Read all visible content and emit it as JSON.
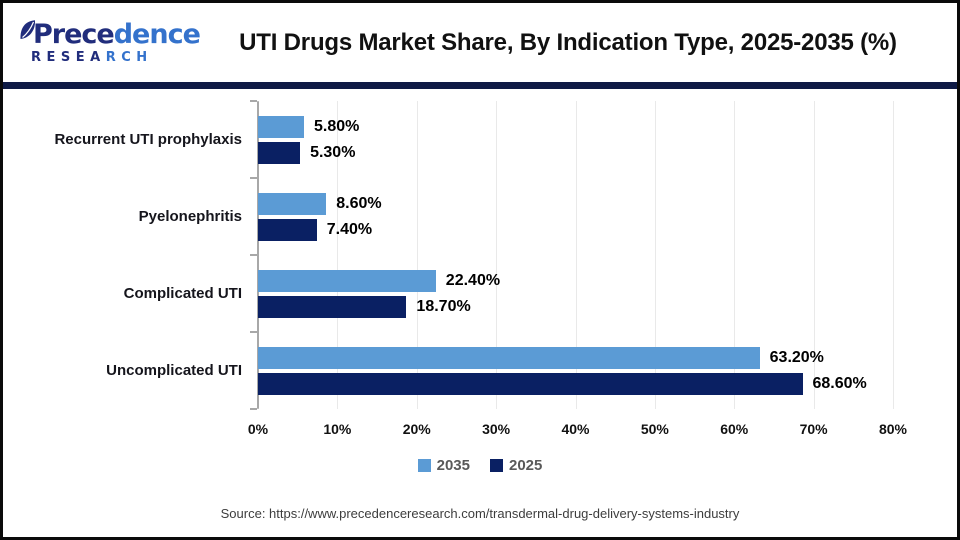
{
  "header": {
    "logo": {
      "word_dark": "Prece",
      "word_light": "dence",
      "sub_dark": "RESEA",
      "sub_light": "RCH"
    },
    "title": "UTI Drugs Market Share, By Indication Type, 2025-2035 (%)"
  },
  "chart_data": {
    "type": "bar",
    "orientation": "horizontal",
    "title": "UTI Drugs Market Share, By Indication Type, 2025-2035 (%)",
    "categories": [
      "Recurrent UTI prophylaxis",
      "Pyelonephritis",
      "Complicated UTI",
      "Uncomplicated UTI"
    ],
    "series": [
      {
        "name": "2035",
        "color": "#5b9bd5",
        "values": [
          5.8,
          8.6,
          22.4,
          63.2
        ]
      },
      {
        "name": "2025",
        "color": "#0a2063",
        "values": [
          5.3,
          7.4,
          18.7,
          68.6
        ]
      }
    ],
    "xlim": [
      0,
      80
    ],
    "x_ticks": [
      "0%",
      "10%",
      "20%",
      "30%",
      "40%",
      "50%",
      "60%",
      "70%",
      "80%"
    ],
    "grid": true,
    "legend_position": "bottom",
    "value_label_format": "0.00%"
  },
  "footer": {
    "source": "Source: https://www.precedenceresearch.com/transdermal-drug-delivery-systems-industry"
  },
  "colors": {
    "accent_2035": "#5b9bd5",
    "accent_2025": "#0a2063",
    "separator": "#0e1a45",
    "axis": "#a8a8a8",
    "grid": "#e9e9e9",
    "legend_text": "#595959"
  }
}
